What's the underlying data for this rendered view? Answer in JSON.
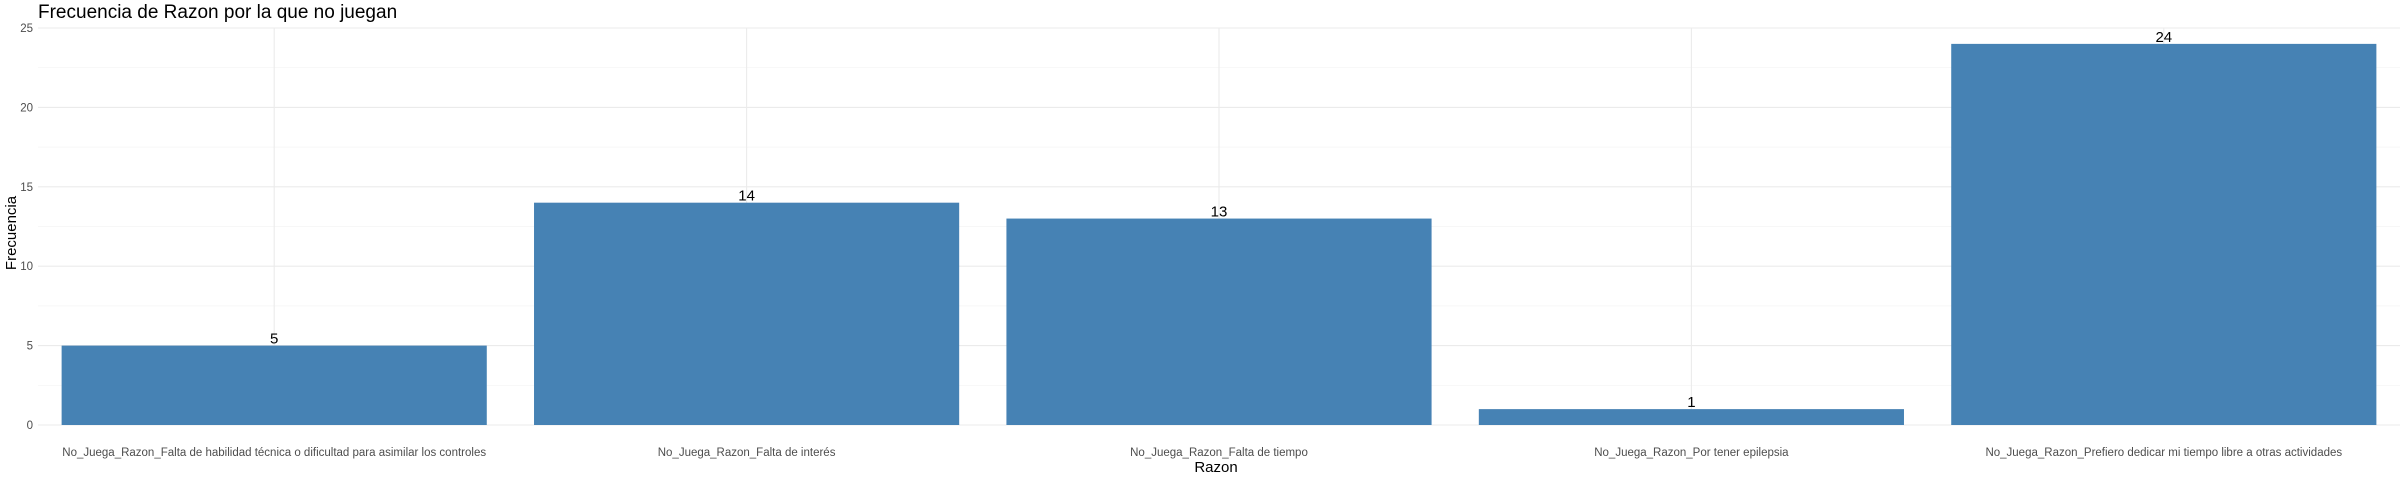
{
  "chart_data": {
    "type": "bar",
    "title": "Frecuencia de Razon por la que no juegan",
    "xlabel": "Razon",
    "ylabel": "Frecuencia",
    "categories": [
      "No_Juega_Razon_Falta de habilidad técnica o dificultad para asimilar los controles",
      "No_Juega_Razon_Falta de interés",
      "No_Juega_Razon_Falta de tiempo",
      "No_Juega_Razon_Por tener epilepsia",
      "No_Juega_Razon_Prefiero dedicar mi tiempo libre a otras actividades"
    ],
    "values": [
      5,
      14,
      13,
      1,
      24
    ],
    "data_labels": [
      "5",
      "14",
      "13",
      "1",
      "24"
    ],
    "yticks": [
      "0",
      "5",
      "10",
      "15",
      "20",
      "25"
    ],
    "ylim": [
      0,
      25
    ],
    "grid": true,
    "legend": "none",
    "bar_color": "#4682b4"
  }
}
